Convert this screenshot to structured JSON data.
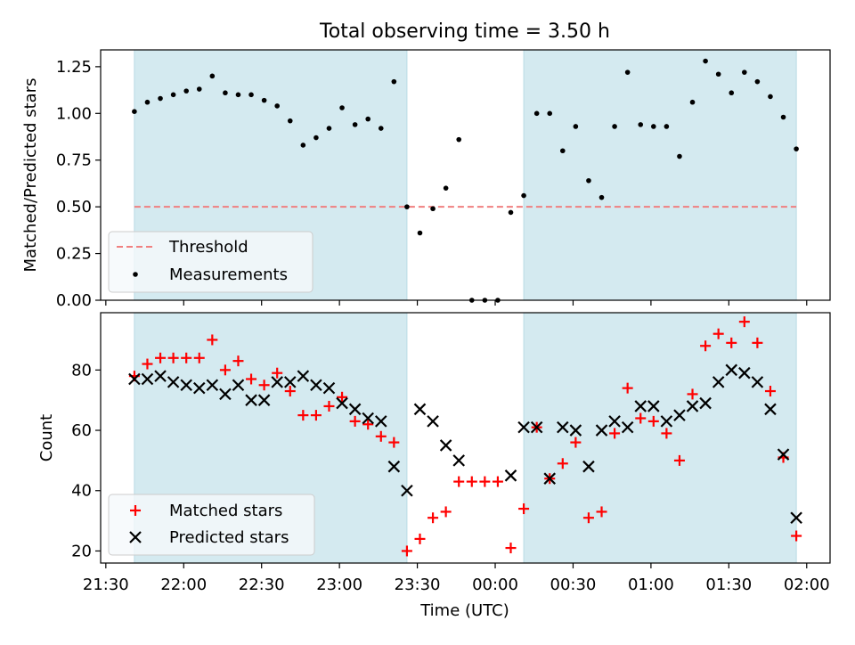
{
  "title": "Total observing time = 3.50 h",
  "colors": {
    "shade": "#d4eaf0",
    "shade_edge": "#b9dbe5",
    "threshold": "#f08080",
    "measurement": "#000000",
    "matched": "#ff0000",
    "predicted": "#000000",
    "legend_bg": "#f5f9fb"
  },
  "x_ticks": [
    "21:30",
    "22:00",
    "22:30",
    "23:00",
    "23:30",
    "00:00",
    "00:30",
    "01:00",
    "01:30",
    "02:00"
  ],
  "chart_data": [
    {
      "type": "scatter",
      "panel": "top",
      "title": "Total observing time = 3.50 h",
      "xlabel": "",
      "ylabel": "Matched/Predicted stars",
      "x_unit": "minutes after 21:30 UTC",
      "xlim": [
        -2,
        279
      ],
      "ylim": [
        0,
        1.34
      ],
      "y_ticks": [
        "0.00",
        "0.25",
        "0.50",
        "0.75",
        "1.00",
        "1.25"
      ],
      "shaded_spans": [
        [
          11,
          116
        ],
        [
          161,
          266
        ]
      ],
      "threshold": {
        "name": "Threshold",
        "value": 0.5,
        "x_range": [
          11,
          266
        ],
        "style": "dashed"
      },
      "series": [
        {
          "name": "Measurements",
          "x": [
            11,
            16,
            21,
            26,
            31,
            36,
            41,
            46,
            51,
            56,
            61,
            66,
            71,
            76,
            81,
            86,
            91,
            96,
            101,
            106,
            111,
            116,
            121,
            126,
            131,
            136,
            141,
            146,
            151,
            156,
            161,
            166,
            171,
            176,
            181,
            186,
            191,
            196,
            201,
            206,
            211,
            216,
            221,
            226,
            231,
            236,
            241,
            246,
            251,
            256,
            261,
            266
          ],
          "y": [
            1.01,
            1.06,
            1.08,
            1.1,
            1.12,
            1.13,
            1.2,
            1.11,
            1.1,
            1.1,
            1.07,
            1.04,
            0.96,
            0.83,
            0.87,
            0.92,
            1.03,
            0.94,
            0.97,
            0.92,
            1.17,
            0.5,
            0.36,
            0.49,
            0.6,
            0.86,
            0.0,
            0.0,
            0.0,
            0.47,
            0.56,
            1.0,
            1.0,
            0.8,
            0.93,
            0.64,
            0.55,
            0.93,
            1.22,
            0.94,
            0.93,
            0.93,
            0.77,
            1.06,
            1.28,
            1.21,
            1.11,
            1.22,
            1.17,
            1.09,
            0.98,
            0.81
          ]
        }
      ],
      "legend": {
        "position": "lower-left",
        "entries": [
          "Threshold",
          "Measurements"
        ]
      }
    },
    {
      "type": "scatter",
      "panel": "bottom",
      "xlabel": "Time (UTC)",
      "ylabel": "Count",
      "x_unit": "minutes after 21:30 UTC",
      "xlim": [
        -2,
        279
      ],
      "ylim": [
        16,
        99
      ],
      "y_ticks": [
        "20",
        "40",
        "60",
        "80"
      ],
      "shaded_spans": [
        [
          11,
          116
        ],
        [
          161,
          266
        ]
      ],
      "series": [
        {
          "name": "Matched stars",
          "marker": "plus",
          "x": [
            11,
            16,
            21,
            26,
            31,
            36,
            41,
            46,
            51,
            56,
            61,
            66,
            71,
            76,
            81,
            86,
            91,
            96,
            101,
            106,
            111,
            116,
            121,
            126,
            131,
            136,
            141,
            146,
            151,
            156,
            161,
            166,
            171,
            176,
            181,
            186,
            191,
            196,
            201,
            206,
            211,
            216,
            221,
            226,
            231,
            236,
            241,
            246,
            251,
            256,
            261,
            266
          ],
          "y": [
            78,
            82,
            84,
            84,
            84,
            84,
            90,
            80,
            83,
            77,
            75,
            79,
            73,
            65,
            65,
            68,
            71,
            63,
            62,
            58,
            56,
            20,
            24,
            31,
            33,
            43,
            43,
            43,
            43,
            21,
            34,
            61,
            44,
            49,
            56,
            31,
            33,
            59,
            74,
            64,
            63,
            59,
            50,
            72,
            88,
            92,
            89,
            96,
            89,
            73,
            51,
            25
          ]
        },
        {
          "name": "Predicted stars",
          "marker": "x",
          "x": [
            11,
            16,
            21,
            26,
            31,
            36,
            41,
            46,
            51,
            56,
            61,
            66,
            71,
            76,
            81,
            86,
            91,
            96,
            101,
            106,
            111,
            116,
            121,
            126,
            131,
            136,
            156,
            161,
            166,
            171,
            176,
            181,
            186,
            191,
            196,
            201,
            206,
            211,
            216,
            221,
            226,
            231,
            236,
            241,
            246,
            251,
            256,
            261,
            266
          ],
          "y": [
            77,
            77,
            78,
            76,
            75,
            74,
            75,
            72,
            75,
            70,
            70,
            76,
            76,
            78,
            75,
            74,
            69,
            67,
            64,
            63,
            48,
            40,
            67,
            63,
            55,
            50,
            45,
            61,
            61,
            44,
            61,
            60,
            48,
            60,
            63,
            61,
            68,
            68,
            63,
            65,
            68,
            69,
            76,
            80,
            79,
            76,
            67,
            52,
            31
          ]
        }
      ],
      "legend": {
        "position": "lower-left",
        "entries": [
          "Matched stars",
          "Predicted stars"
        ]
      }
    }
  ]
}
